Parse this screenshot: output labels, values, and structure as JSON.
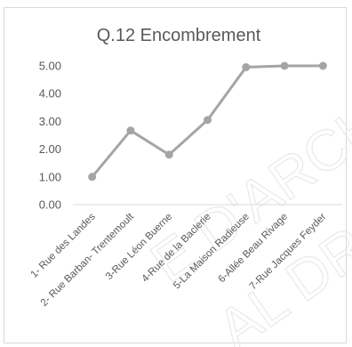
{
  "chart_data": {
    "type": "line",
    "title": "Q.12 Encombrement",
    "xlabel": "",
    "ylabel": "",
    "categories": [
      "1- Rue des Landes",
      "2- Rue Barban- Trentemoult",
      "3-Rue Léon Buerne",
      "4-Rue de la Baclerie",
      "5-La Maison Radieuse",
      "6-Allée Beau Rivage",
      "7-Rue Jacques Feyder"
    ],
    "series": [
      {
        "values": [
          1.0,
          2.67,
          1.8,
          3.05,
          4.95,
          5.0,
          5.0
        ]
      }
    ],
    "ylim": [
      0,
      5
    ],
    "yticks": [
      "0.00",
      "1.00",
      "2.00",
      "3.00",
      "4.00",
      "5.00"
    ],
    "grid": false,
    "legend": "none",
    "colors": {
      "line": "#a5a5a5",
      "text": "#595959",
      "axis": "#d9d9d9"
    },
    "watermark": [
      "E D'ARCHI",
      "AL DRO"
    ]
  }
}
